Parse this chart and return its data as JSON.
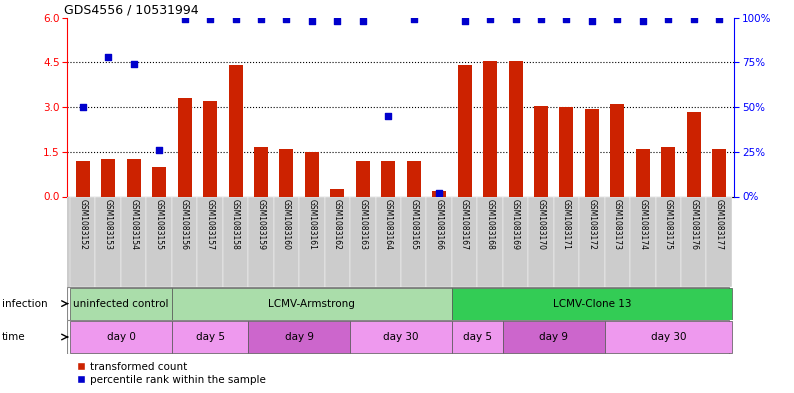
{
  "title": "GDS4556 / 10531994",
  "samples": [
    "GSM1083152",
    "GSM1083153",
    "GSM1083154",
    "GSM1083155",
    "GSM1083156",
    "GSM1083157",
    "GSM1083158",
    "GSM1083159",
    "GSM1083160",
    "GSM1083161",
    "GSM1083162",
    "GSM1083163",
    "GSM1083164",
    "GSM1083165",
    "GSM1083166",
    "GSM1083167",
    "GSM1083168",
    "GSM1083169",
    "GSM1083170",
    "GSM1083171",
    "GSM1083172",
    "GSM1083173",
    "GSM1083174",
    "GSM1083175",
    "GSM1083176",
    "GSM1083177"
  ],
  "red_values": [
    1.2,
    1.25,
    1.25,
    1.0,
    3.3,
    3.2,
    4.4,
    1.65,
    1.6,
    1.5,
    0.25,
    1.2,
    1.2,
    1.2,
    0.2,
    4.4,
    4.55,
    4.55,
    3.05,
    3.0,
    2.95,
    3.1,
    1.6,
    1.65,
    2.85,
    1.6
  ],
  "blue_values": [
    50.0,
    78.0,
    74.0,
    26.0,
    99.0,
    99.0,
    99.0,
    99.0,
    99.0,
    98.0,
    98.0,
    98.0,
    45.0,
    99.0,
    2.0,
    98.0,
    99.0,
    99.0,
    99.0,
    99.0,
    98.0,
    99.0,
    98.0,
    99.0,
    99.0,
    99.0
  ],
  "infection_groups": [
    {
      "label": "uninfected control",
      "start": 0,
      "end": 4,
      "color": "#aaddaa"
    },
    {
      "label": "LCMV-Armstrong",
      "start": 4,
      "end": 15,
      "color": "#aaddaa"
    },
    {
      "label": "LCMV-Clone 13",
      "start": 15,
      "end": 26,
      "color": "#33cc55"
    }
  ],
  "time_groups": [
    {
      "label": "day 0",
      "start": 0,
      "end": 4,
      "color": "#ee99ee"
    },
    {
      "label": "day 5",
      "start": 4,
      "end": 7,
      "color": "#ee99ee"
    },
    {
      "label": "day 9",
      "start": 7,
      "end": 11,
      "color": "#cc66cc"
    },
    {
      "label": "day 30",
      "start": 11,
      "end": 15,
      "color": "#ee99ee"
    },
    {
      "label": "day 5",
      "start": 15,
      "end": 17,
      "color": "#ee99ee"
    },
    {
      "label": "day 9",
      "start": 17,
      "end": 21,
      "color": "#cc66cc"
    },
    {
      "label": "day 30",
      "start": 21,
      "end": 26,
      "color": "#ee99ee"
    }
  ],
  "ylim_left": [
    0,
    6
  ],
  "ylim_right": [
    0,
    100
  ],
  "yticks_left": [
    0,
    1.5,
    3.0,
    4.5,
    6.0
  ],
  "yticks_right": [
    0,
    25,
    50,
    75,
    100
  ],
  "bar_color": "#CC2200",
  "dot_color": "#0000CC",
  "bg_color": "#FFFFFF",
  "infection_label": "infection",
  "time_label": "time",
  "legend_red": "transformed count",
  "legend_blue": "percentile rank within the sample"
}
